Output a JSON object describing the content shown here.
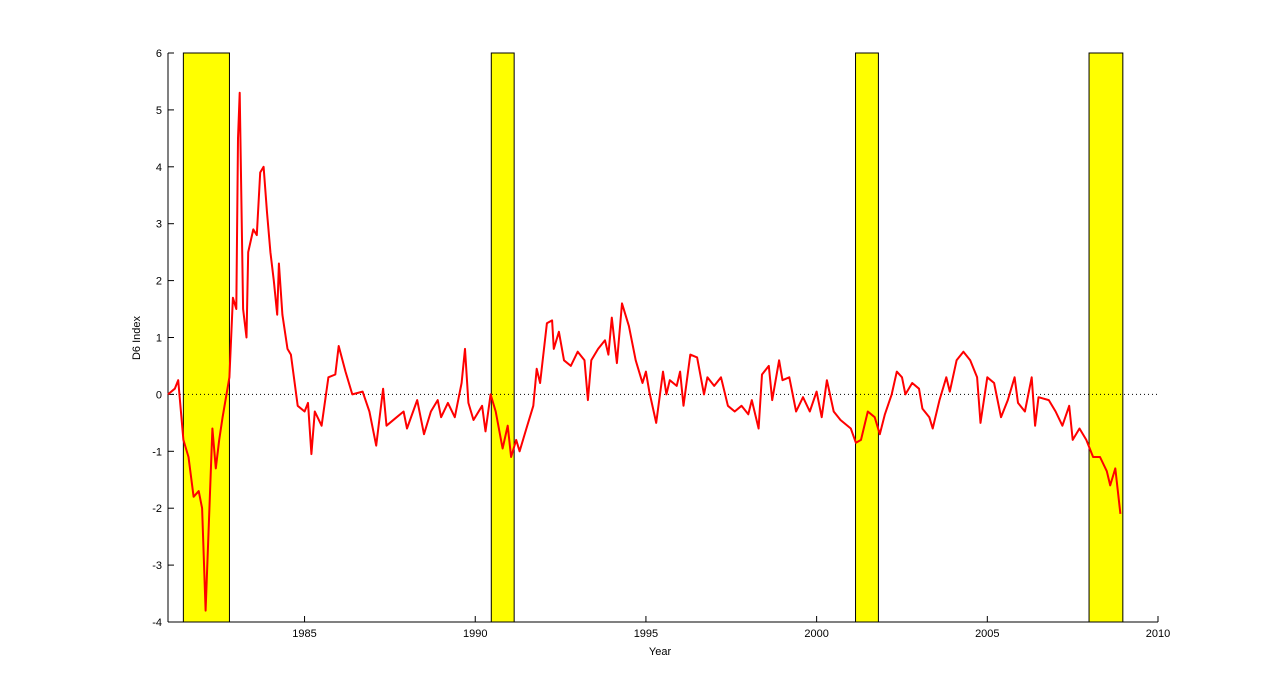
{
  "chart_data": {
    "type": "line",
    "xlabel": "Year",
    "ylabel": "D6 Index",
    "xlim": [
      1981,
      2010
    ],
    "ylim": [
      -4,
      6
    ],
    "xticks": [
      1985,
      1990,
      1995,
      2000,
      2005,
      2010
    ],
    "yticks": [
      -4,
      -3,
      -2,
      -1,
      0,
      1,
      2,
      3,
      4,
      5,
      6
    ],
    "reference_line": 0,
    "shaded_ranges": [
      [
        1981.45,
        1982.8
      ],
      [
        1990.47,
        1991.14
      ],
      [
        2001.14,
        2001.81
      ],
      [
        2007.98,
        2008.97
      ]
    ],
    "shade_color": "#ffff00",
    "series": [
      {
        "color": "#ff0000",
        "x": [
          1981.0,
          1981.2,
          1981.3,
          1981.45,
          1981.6,
          1981.75,
          1981.9,
          1982.0,
          1982.1,
          1982.2,
          1982.3,
          1982.4,
          1982.5,
          1982.6,
          1982.8,
          1982.9,
          1983.0,
          1983.05,
          1983.1,
          1983.2,
          1983.3,
          1983.35,
          1983.5,
          1983.6,
          1983.7,
          1983.8,
          1983.9,
          1984.0,
          1984.1,
          1984.2,
          1984.25,
          1984.35,
          1984.5,
          1984.6,
          1984.8,
          1985.0,
          1985.1,
          1985.2,
          1985.3,
          1985.5,
          1985.7,
          1985.9,
          1986.0,
          1986.2,
          1986.4,
          1986.7,
          1986.9,
          1987.1,
          1987.3,
          1987.4,
          1987.7,
          1987.9,
          1988.0,
          1988.3,
          1988.5,
          1988.7,
          1988.9,
          1989.0,
          1989.2,
          1989.4,
          1989.6,
          1989.7,
          1989.8,
          1989.95,
          1990.2,
          1990.3,
          1990.45,
          1990.6,
          1990.8,
          1990.95,
          1991.05,
          1991.2,
          1991.3,
          1991.5,
          1991.7,
          1991.8,
          1991.9,
          1992.1,
          1992.25,
          1992.3,
          1992.45,
          1992.6,
          1992.8,
          1993.0,
          1993.2,
          1993.3,
          1993.4,
          1993.6,
          1993.8,
          1993.9,
          1994.0,
          1994.15,
          1994.3,
          1994.5,
          1994.7,
          1994.9,
          1995.0,
          1995.1,
          1995.3,
          1995.5,
          1995.6,
          1995.7,
          1995.9,
          1996.0,
          1996.1,
          1996.3,
          1996.5,
          1996.7,
          1996.8,
          1997.0,
          1997.2,
          1997.4,
          1997.6,
          1997.8,
          1998.0,
          1998.1,
          1998.3,
          1998.4,
          1998.6,
          1998.7,
          1998.9,
          1999.0,
          1999.2,
          1999.4,
          1999.6,
          1999.8,
          2000.0,
          2000.15,
          2000.3,
          2000.5,
          2000.7,
          2001.0,
          2001.15,
          2001.3,
          2001.5,
          2001.7,
          2001.85,
          2002.0,
          2002.2,
          2002.35,
          2002.5,
          2002.6,
          2002.8,
          2003.0,
          2003.1,
          2003.3,
          2003.4,
          2003.6,
          2003.8,
          2003.9,
          2004.1,
          2004.3,
          2004.5,
          2004.7,
          2004.8,
          2005.0,
          2005.2,
          2005.4,
          2005.6,
          2005.8,
          2005.9,
          2006.1,
          2006.3,
          2006.4,
          2006.5,
          2006.8,
          2007.0,
          2007.2,
          2007.4,
          2007.5,
          2007.7,
          2007.9,
          2008.1,
          2008.3,
          2008.5,
          2008.6,
          2008.75,
          2008.9
        ],
        "values": [
          0.0,
          0.1,
          0.25,
          -0.8,
          -1.1,
          -1.8,
          -1.7,
          -2.0,
          -3.8,
          -2.2,
          -0.6,
          -1.3,
          -0.8,
          -0.4,
          0.3,
          1.7,
          1.5,
          4.5,
          5.3,
          1.5,
          1.0,
          2.5,
          2.9,
          2.8,
          3.9,
          4.0,
          3.2,
          2.5,
          2.0,
          1.4,
          2.3,
          1.4,
          0.8,
          0.7,
          -0.2,
          -0.3,
          -0.15,
          -1.05,
          -0.3,
          -0.55,
          0.3,
          0.35,
          0.85,
          0.4,
          0.0,
          0.05,
          -0.3,
          -0.9,
          0.1,
          -0.55,
          -0.4,
          -0.3,
          -0.6,
          -0.1,
          -0.7,
          -0.3,
          -0.1,
          -0.4,
          -0.15,
          -0.4,
          0.2,
          0.8,
          -0.15,
          -0.45,
          -0.2,
          -0.65,
          0.0,
          -0.3,
          -0.95,
          -0.55,
          -1.1,
          -0.8,
          -1.0,
          -0.6,
          -0.2,
          0.45,
          0.2,
          1.25,
          1.3,
          0.8,
          1.1,
          0.6,
          0.5,
          0.75,
          0.6,
          -0.1,
          0.6,
          0.8,
          0.95,
          0.7,
          1.35,
          0.55,
          1.6,
          1.2,
          0.6,
          0.2,
          0.4,
          0.05,
          -0.5,
          0.4,
          0.0,
          0.25,
          0.15,
          0.4,
          -0.2,
          0.7,
          0.65,
          0.0,
          0.3,
          0.15,
          0.3,
          -0.2,
          -0.3,
          -0.2,
          -0.35,
          -0.1,
          -0.6,
          0.35,
          0.5,
          -0.1,
          0.6,
          0.25,
          0.3,
          -0.3,
          -0.05,
          -0.3,
          0.05,
          -0.4,
          0.25,
          -0.3,
          -0.45,
          -0.6,
          -0.85,
          -0.8,
          -0.3,
          -0.4,
          -0.7,
          -0.35,
          0.0,
          0.4,
          0.3,
          0.0,
          0.2,
          0.1,
          -0.25,
          -0.4,
          -0.6,
          -0.1,
          0.3,
          0.05,
          0.6,
          0.75,
          0.6,
          0.3,
          -0.5,
          0.3,
          0.2,
          -0.4,
          -0.1,
          0.3,
          -0.15,
          -0.3,
          0.3,
          -0.55,
          -0.05,
          -0.1,
          -0.3,
          -0.55,
          -0.2,
          -0.8,
          -0.6,
          -0.8,
          -1.1,
          -1.1,
          -1.35,
          -1.6,
          -1.3,
          -2.1
        ]
      }
    ]
  }
}
